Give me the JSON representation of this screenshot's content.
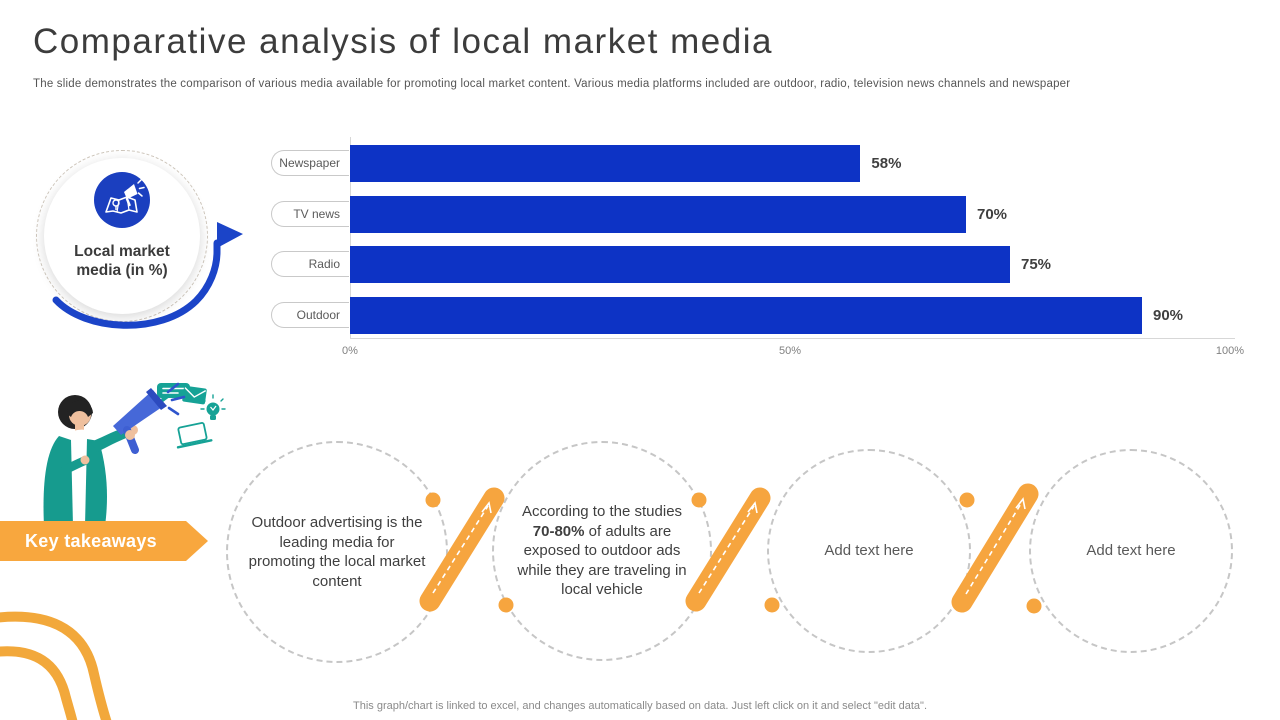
{
  "slide": {
    "title": "Comparative analysis of local market media",
    "subtitle": "The slide demonstrates the comparison of various media available for promoting local market content. Various media platforms included are outdoor, radio, television news channels and newspaper",
    "footer": "This graph/chart is linked to excel,  and changes automatically based on data. Just left click on it and select \"edit data\"."
  },
  "infographic": {
    "icon": "megaphone-map-icon",
    "label_line1": "Local market",
    "label_line2": "media (in %)"
  },
  "chart_data": {
    "type": "bar",
    "orientation": "horizontal",
    "title": "Local market media (in %)",
    "categories": [
      "Newspaper",
      "TV news",
      "Radio",
      "Outdoor"
    ],
    "values": [
      58,
      70,
      75,
      90
    ],
    "value_labels": [
      "58%",
      "70%",
      "75%",
      "90%"
    ],
    "x_ticks": [
      "0%",
      "50%",
      "100%"
    ],
    "xlim": [
      0,
      100
    ],
    "grid": false,
    "legend": false,
    "bar_color": "#0d33c5",
    "label_color": "#3f3f3f"
  },
  "takeaways": {
    "banner_label": "Key takeaways",
    "items": [
      {
        "text": "Outdoor advertising is the leading media for promoting the local market content"
      },
      {
        "before": "According to the studies ",
        "bold": "70-80%",
        "after": " of adults are exposed to outdoor ads while they are traveling in local vehicle"
      },
      {
        "text": "Add text here"
      },
      {
        "text": "Add text here"
      }
    ]
  },
  "colors": {
    "bar_blue": "#0d33c5",
    "icon_blue": "#1b3fbf",
    "swoosh_blue": "#1b44c8",
    "accent_orange": "#f8a73e",
    "teal": "#16a296",
    "text_dark": "#3f3f3f",
    "text_gray": "#595959",
    "axis_gray": "#d7d7d7"
  }
}
